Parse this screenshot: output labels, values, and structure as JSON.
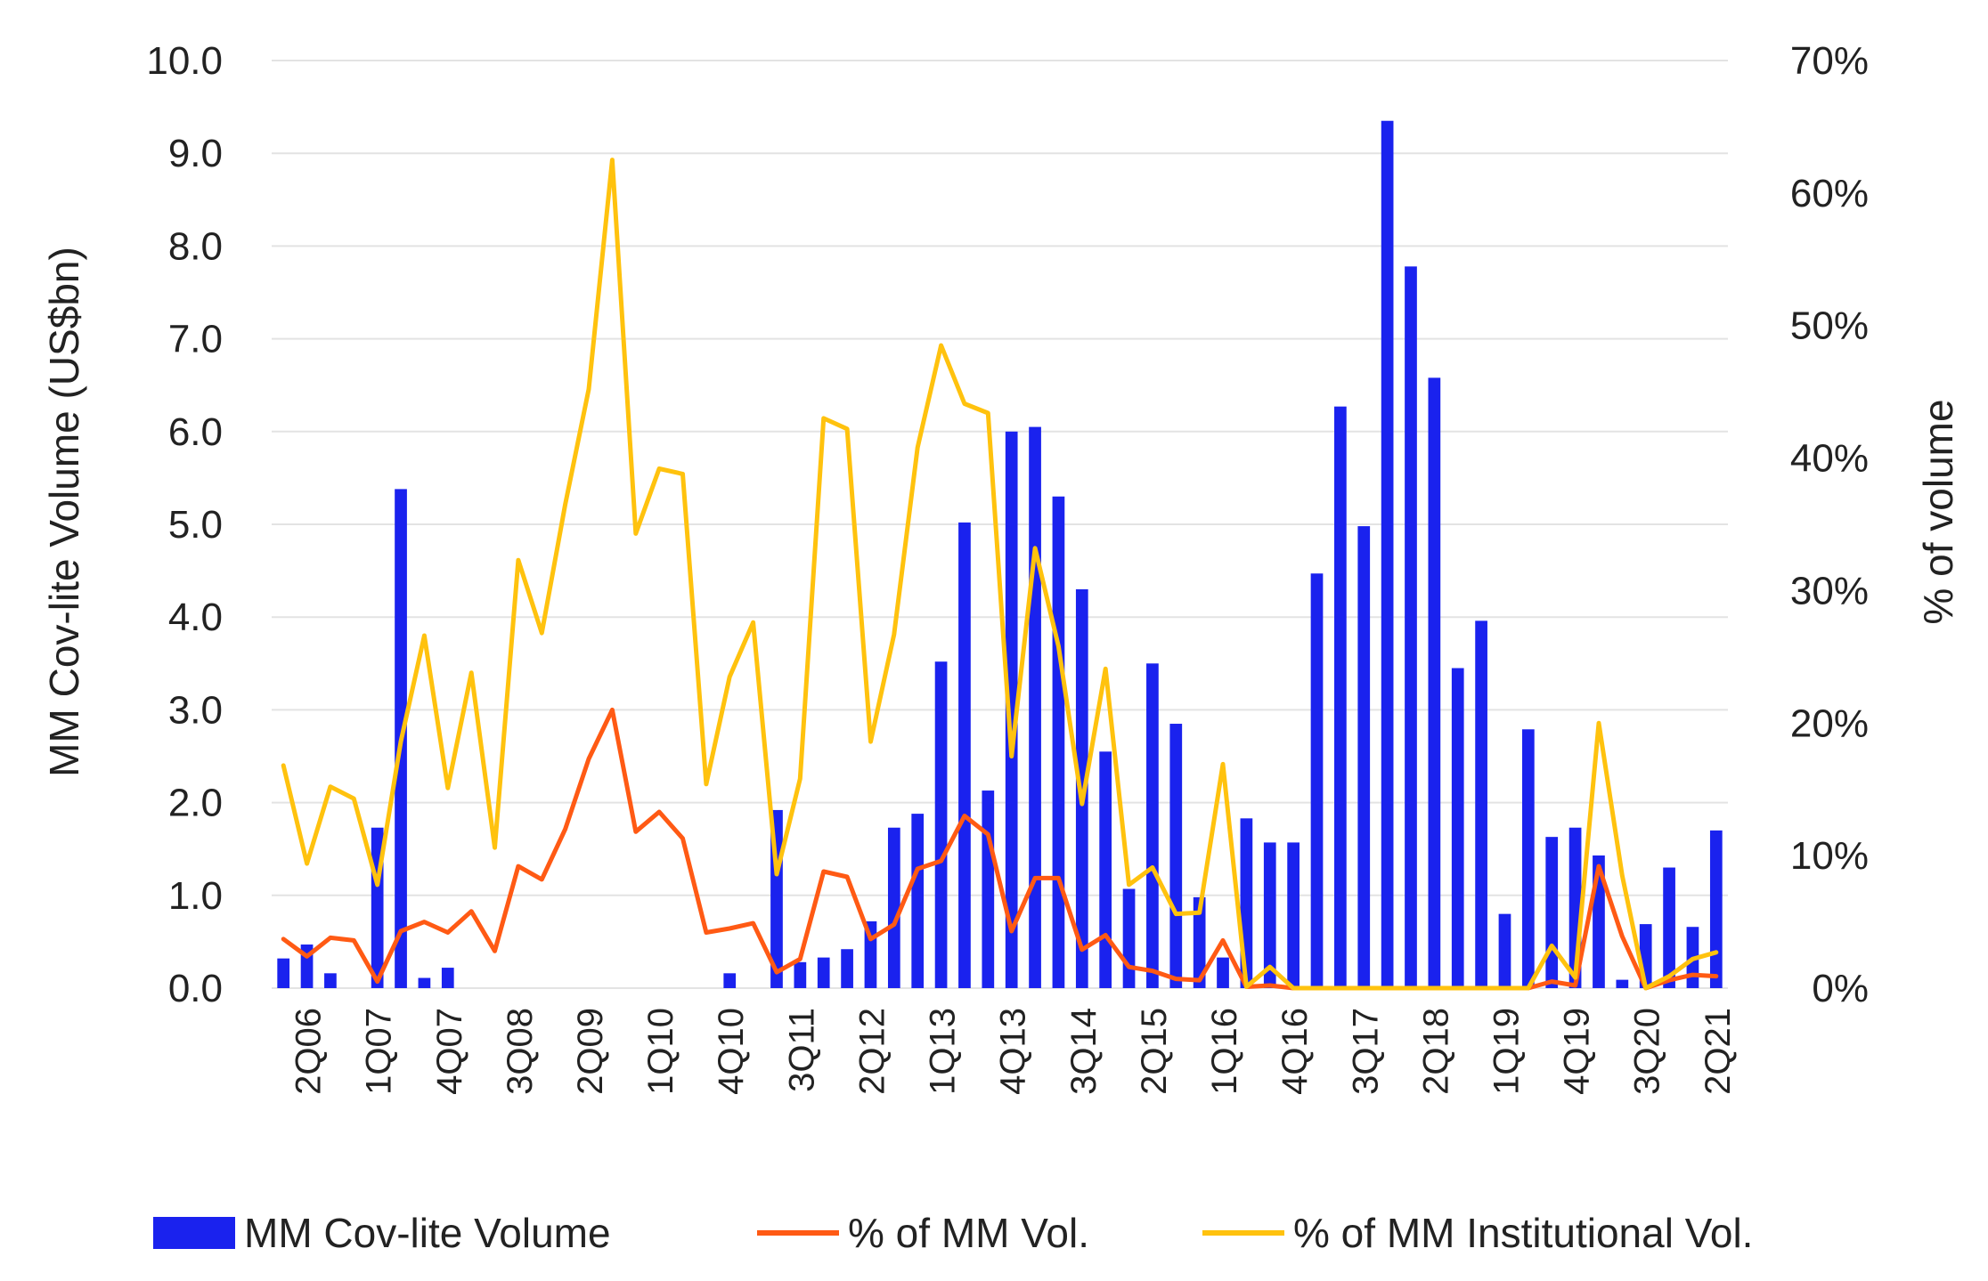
{
  "chart_data": {
    "type": "bar+line",
    "ylabel": "MM Cov-lite Volume (US$bn)",
    "y2label": "% of volume",
    "ylim": [
      0,
      10
    ],
    "y2lim": [
      0,
      70
    ],
    "y_ticks": [
      "0.0",
      "1.0",
      "2.0",
      "3.0",
      "4.0",
      "5.0",
      "6.0",
      "7.0",
      "8.0",
      "9.0",
      "10.0"
    ],
    "y2_ticks": [
      "0%",
      "10%",
      "20%",
      "30%",
      "40%",
      "50%",
      "60%",
      "70%"
    ],
    "x_tick_labels": [
      "2Q06",
      "1Q07",
      "4Q07",
      "3Q08",
      "2Q09",
      "1Q10",
      "4Q10",
      "3Q11",
      "2Q12",
      "1Q13",
      "4Q13",
      "3Q14",
      "2Q15",
      "1Q16",
      "4Q16",
      "3Q17",
      "2Q18",
      "1Q19",
      "4Q19",
      "3Q20",
      "2Q21"
    ],
    "categories": [
      "1Q06",
      "2Q06",
      "3Q06",
      "4Q06",
      "1Q07",
      "2Q07",
      "3Q07",
      "4Q07",
      "1Q08",
      "2Q08",
      "3Q08",
      "4Q08",
      "1Q09",
      "2Q09",
      "3Q09",
      "4Q09",
      "1Q10",
      "2Q10",
      "3Q10",
      "4Q10",
      "1Q11",
      "2Q11",
      "3Q11",
      "4Q11",
      "1Q12",
      "2Q12",
      "3Q12",
      "4Q12",
      "1Q13",
      "2Q13",
      "3Q13",
      "4Q13",
      "1Q14",
      "2Q14",
      "3Q14",
      "4Q14",
      "1Q15",
      "2Q15",
      "3Q15",
      "4Q15",
      "1Q16",
      "2Q16",
      "3Q16",
      "4Q16",
      "1Q17",
      "2Q17",
      "3Q17",
      "4Q17",
      "1Q18",
      "2Q18",
      "3Q18",
      "4Q18",
      "1Q19",
      "2Q19",
      "3Q19",
      "4Q19",
      "1Q20",
      "2Q20",
      "3Q20",
      "4Q20",
      "1Q21",
      "2Q21"
    ],
    "series": [
      {
        "name": "MM Cov-lite Volume",
        "kind": "bar",
        "axis": "left",
        "color": "#1a22ee",
        "values": [
          0.32,
          0.47,
          0.16,
          0,
          1.73,
          5.38,
          0.11,
          0.22,
          0,
          0,
          0,
          0,
          0,
          0,
          0,
          0,
          0,
          0,
          0,
          0.16,
          0,
          1.92,
          0.28,
          0.33,
          0.42,
          0.72,
          1.73,
          1.88,
          3.52,
          5.02,
          2.13,
          6.0,
          6.05,
          5.3,
          4.3,
          2.55,
          1.07,
          3.5,
          2.85,
          0.98,
          0.33,
          1.83,
          1.57,
          1.57,
          4.47,
          6.27,
          4.98,
          9.35,
          7.78,
          6.58,
          3.45,
          3.96,
          0.8,
          2.79,
          1.63,
          1.73,
          1.43,
          0.09,
          0.69,
          1.3,
          0.66,
          1.7
        ]
      },
      {
        "name": "% of MM Vol.",
        "kind": "line",
        "axis": "right",
        "color": "#ff5a14",
        "values": [
          3.7,
          2.4,
          3.8,
          3.6,
          0.5,
          4.3,
          5.0,
          4.2,
          5.8,
          2.8,
          9.2,
          8.2,
          12.0,
          17.3,
          21.0,
          11.8,
          13.3,
          11.3,
          4.2,
          4.5,
          4.9,
          1.2,
          2.2,
          8.8,
          8.4,
          3.7,
          4.8,
          9.0,
          9.6,
          13.0,
          11.6,
          4.3,
          8.3,
          8.3,
          2.9,
          4.0,
          1.6,
          1.3,
          0.7,
          0.6,
          3.6,
          0.1,
          0.2,
          0,
          0,
          0,
          0,
          0,
          0,
          0,
          0,
          0,
          0,
          0,
          0.5,
          0.2,
          9.2,
          3.9,
          0,
          0.6,
          1.0,
          0.9
        ]
      },
      {
        "name": "% of MM Institutional Vol.",
        "kind": "line",
        "axis": "right",
        "color": "#ffc20e",
        "values": [
          16.8,
          9.4,
          15.2,
          14.3,
          7.8,
          18.6,
          26.6,
          15.1,
          23.8,
          10.6,
          32.3,
          26.8,
          36.5,
          45.2,
          62.5,
          34.3,
          39.2,
          38.8,
          15.4,
          23.5,
          27.6,
          8.6,
          15.8,
          43.0,
          42.2,
          18.6,
          26.7,
          40.8,
          48.5,
          44.1,
          43.4,
          17.5,
          33.2,
          25.8,
          13.9,
          24.1,
          7.8,
          9.1,
          5.6,
          5.7,
          16.9,
          0.1,
          1.6,
          0,
          0,
          0,
          0,
          0,
          0,
          0,
          0,
          0,
          0,
          0,
          3.2,
          0.8,
          20.0,
          8.5,
          0,
          0.9,
          2.2,
          2.7
        ]
      }
    ],
    "grid": "horizontal",
    "legend_position": "bottom"
  }
}
